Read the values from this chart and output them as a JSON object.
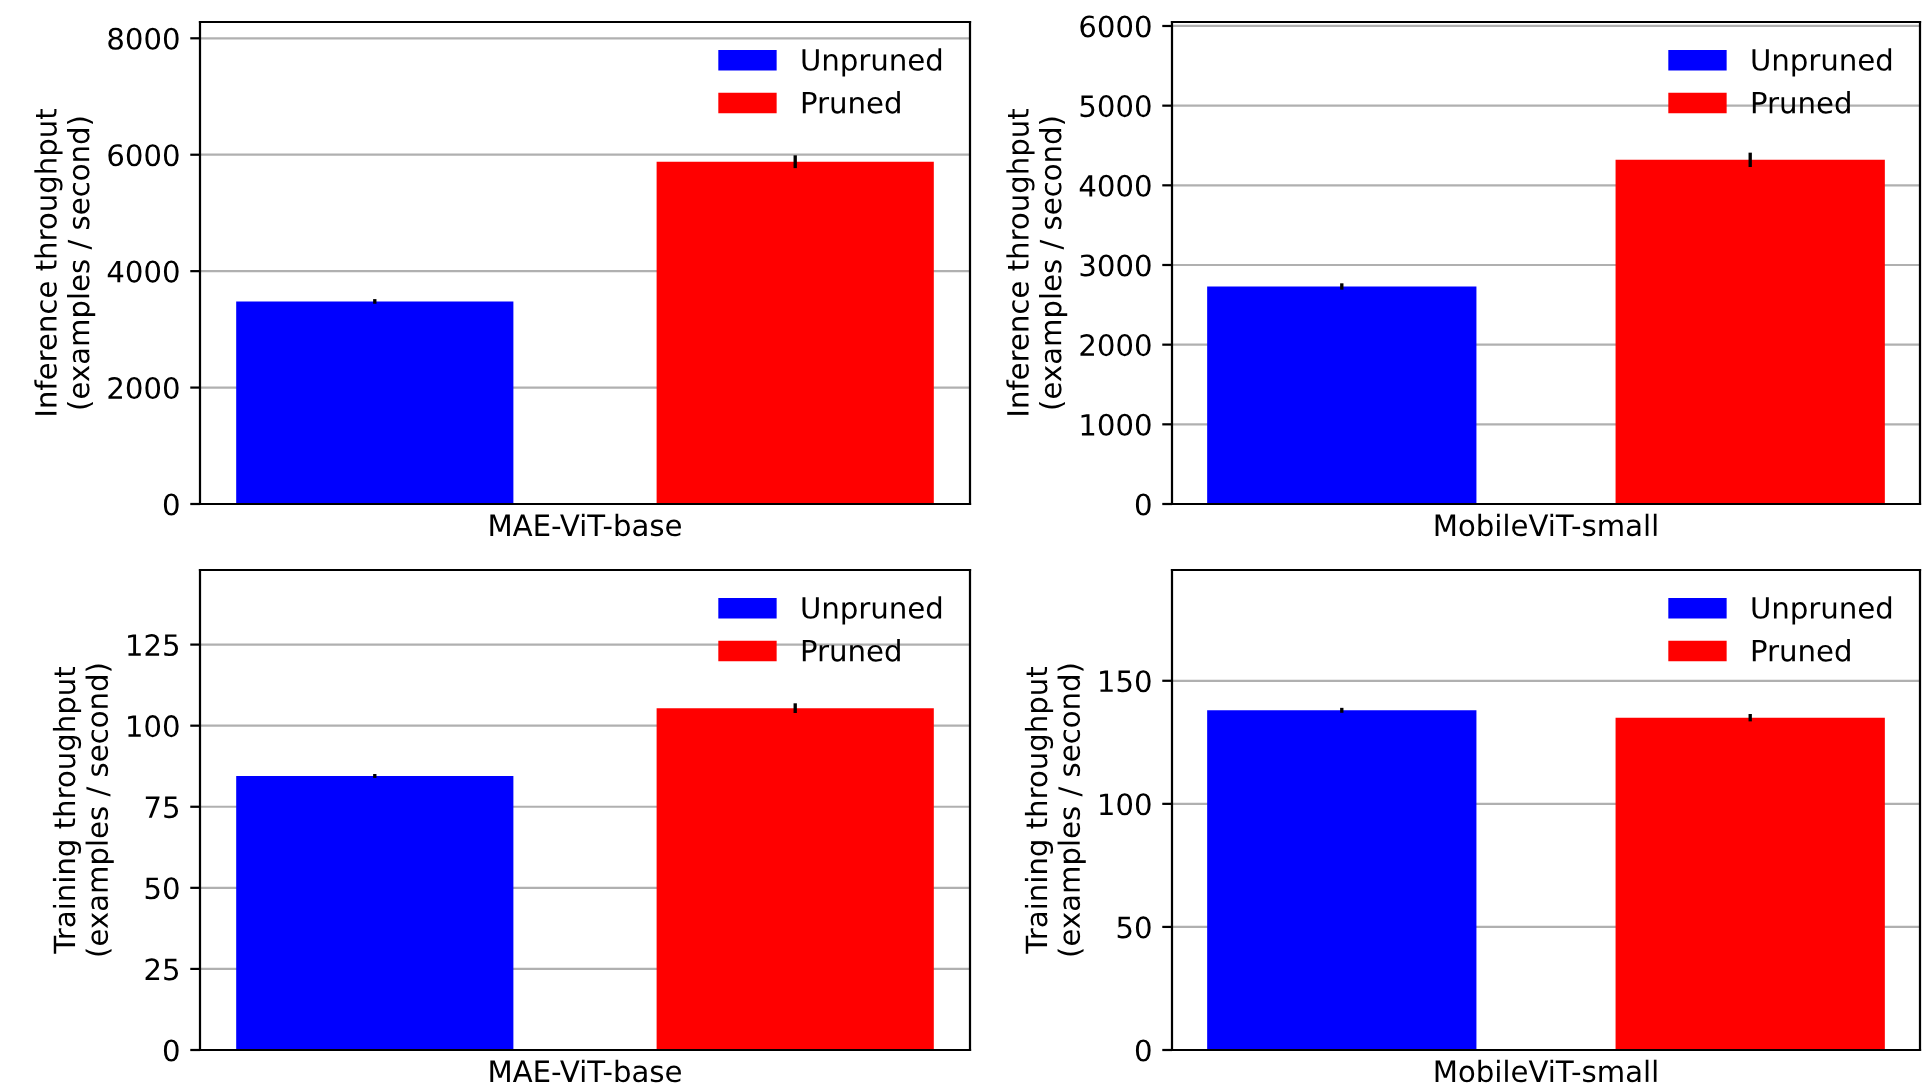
{
  "chart_data": [
    {
      "type": "bar",
      "categories": [
        "MAE-ViT-base"
      ],
      "ylabel": "Inference throughput\n(examples / second)",
      "ylim": [
        0,
        8280
      ],
      "yticks": [
        0,
        2000,
        4000,
        6000,
        8000
      ],
      "grid": "y",
      "legend": "top right",
      "series": [
        {
          "name": "Unpruned",
          "color": "#0000ff",
          "values": [
            3480
          ],
          "errors": [
            40
          ]
        },
        {
          "name": "Pruned",
          "color": "#ff0000",
          "values": [
            5880
          ],
          "errors": [
            110
          ]
        }
      ]
    },
    {
      "type": "bar",
      "categories": [
        "MobileViT-small"
      ],
      "ylabel": "Inference throughput\n(examples / second)",
      "ylim": [
        0,
        6050
      ],
      "yticks": [
        0,
        1000,
        2000,
        3000,
        4000,
        5000,
        6000
      ],
      "grid": "y",
      "legend": "top right",
      "series": [
        {
          "name": "Unpruned",
          "color": "#0000ff",
          "values": [
            2730
          ],
          "errors": [
            40
          ]
        },
        {
          "name": "Pruned",
          "color": "#ff0000",
          "values": [
            4320
          ],
          "errors": [
            90
          ]
        }
      ]
    },
    {
      "type": "bar",
      "categories": [
        "MAE-ViT-base"
      ],
      "ylabel": "Training throughput\n(examples / second)",
      "ylim": [
        0,
        148
      ],
      "yticks": [
        0,
        25,
        50,
        75,
        100,
        125
      ],
      "grid": "y",
      "legend": "top right",
      "series": [
        {
          "name": "Unpruned",
          "color": "#0000ff",
          "values": [
            84.5
          ],
          "errors": [
            0.6
          ]
        },
        {
          "name": "Pruned",
          "color": "#ff0000",
          "values": [
            105.4
          ],
          "errors": [
            1.5
          ]
        }
      ]
    },
    {
      "type": "bar",
      "categories": [
        "MobileViT-small"
      ],
      "ylabel": "Training throughput\n(examples / second)",
      "ylim": [
        0,
        195
      ],
      "yticks": [
        0,
        50,
        100,
        150
      ],
      "grid": "y",
      "legend": "top right",
      "series": [
        {
          "name": "Unpruned",
          "color": "#0000ff",
          "values": [
            138
          ],
          "errors": [
            1
          ]
        },
        {
          "name": "Pruned",
          "color": "#ff0000",
          "values": [
            135
          ],
          "errors": [
            1.5
          ]
        }
      ]
    }
  ]
}
